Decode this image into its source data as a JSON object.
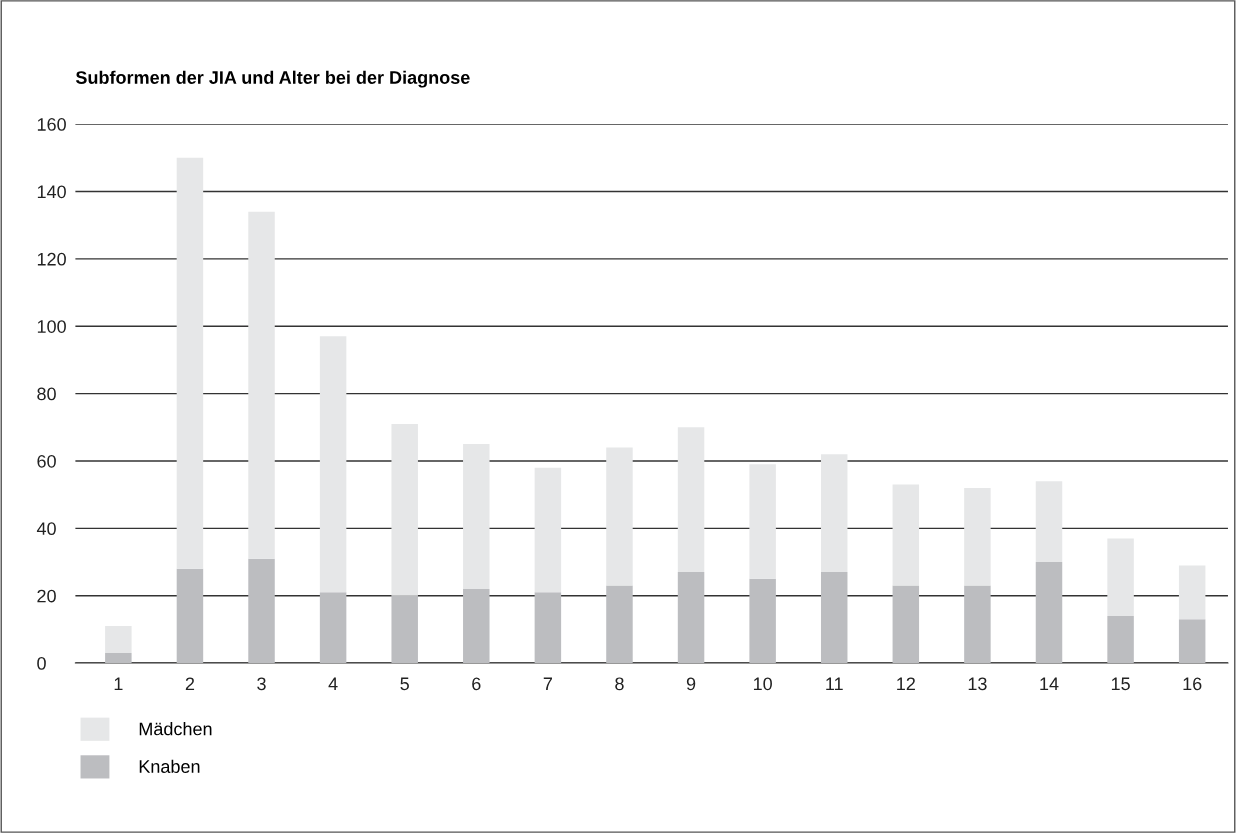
{
  "chart_data": {
    "type": "bar",
    "title": "Subformen der JIA und Alter bei der Diagnose",
    "categories": [
      "1",
      "2",
      "3",
      "4",
      "5",
      "6",
      "7",
      "8",
      "9",
      "10",
      "11",
      "12",
      "13",
      "14",
      "15",
      "16"
    ],
    "stacked": true,
    "series": [
      {
        "name": "Knaben",
        "color": "#bcbdc0",
        "values": [
          3,
          28,
          31,
          21,
          20,
          22,
          21,
          23,
          27,
          25,
          27,
          23,
          23,
          30,
          14,
          13
        ]
      },
      {
        "name": "Mädchen",
        "color": "#e6e7e8",
        "values": [
          8,
          122,
          103,
          76,
          51,
          43,
          37,
          41,
          43,
          34,
          35,
          30,
          29,
          24,
          23,
          16
        ]
      }
    ],
    "ylim": [
      0,
      160
    ],
    "yticks": [
      0,
      20,
      40,
      60,
      80,
      100,
      120,
      140,
      160
    ],
    "grid": "y",
    "legend": "bottom left"
  }
}
